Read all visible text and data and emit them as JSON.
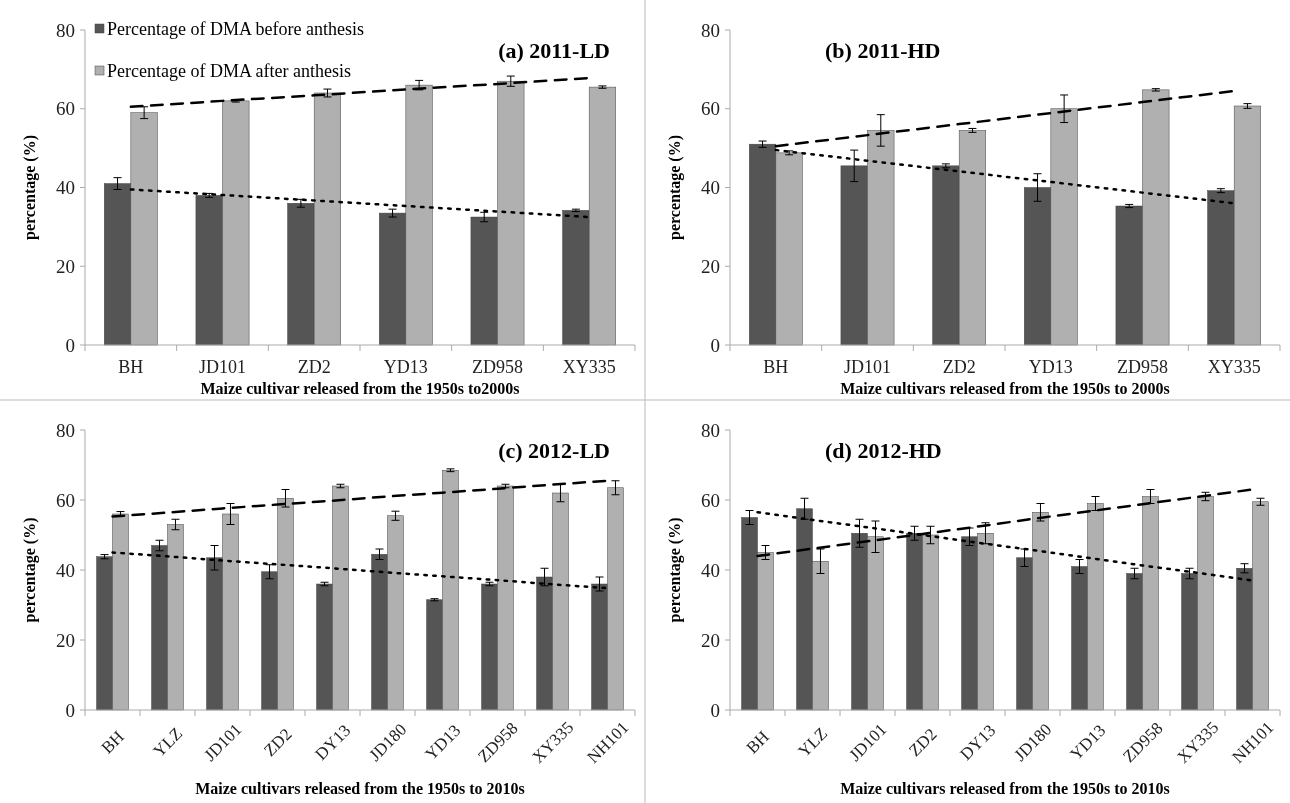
{
  "chart_data": [
    {
      "type": "bar",
      "title": "(a) 2011-LD",
      "xlabel": "Maize cultivar released from the 1950s to2000s",
      "ylabel": "percentage (%)",
      "categories": [
        "BH",
        "JD101",
        "ZD2",
        "YD13",
        "ZD958",
        "XY335"
      ],
      "ylim": [
        0,
        80
      ],
      "yticks": [
        0,
        20,
        40,
        60,
        80
      ],
      "legend": "top left",
      "series": [
        {
          "name": "Percentage of DMA before anthesis",
          "color": "#555555",
          "values": [
            41,
            38,
            36,
            33.5,
            32.5,
            34.2
          ],
          "errors": [
            1.5,
            0.5,
            1,
            1,
            1.2,
            0.3
          ]
        },
        {
          "name": "Percentage of DMA after anthesis",
          "color": "#b0b0b0",
          "values": [
            59,
            62,
            64,
            66,
            67,
            65.5
          ],
          "errors": [
            1.5,
            0.3,
            1,
            1.2,
            1.3,
            0.3
          ]
        },
        {
          "type": "line",
          "color": "#000000",
          "line_style": "dotted",
          "values": [
            39.5,
            38.1,
            36.7,
            35.3,
            33.9,
            32.5
          ]
        },
        {
          "type": "line",
          "color": "#000000",
          "line_style": "dashed",
          "values": [
            60.5,
            62.0,
            63.4,
            64.9,
            66.3,
            67.8
          ]
        }
      ]
    },
    {
      "type": "bar",
      "title": "(b) 2011-HD",
      "xlabel": "Maize cultivars released from the 1950s to 2000s",
      "ylabel": "percentage (%)",
      "categories": [
        "BH",
        "JD101",
        "ZD2",
        "YD13",
        "ZD958",
        "XY335"
      ],
      "ylim": [
        0,
        80
      ],
      "yticks": [
        0,
        20,
        40,
        60,
        80
      ],
      "series": [
        {
          "color": "#555555",
          "values": [
            51,
            45.5,
            45.5,
            40,
            35.3,
            39.2
          ],
          "errors": [
            0.8,
            4,
            0.5,
            3.5,
            0.4,
            0.5
          ]
        },
        {
          "color": "#b0b0b0",
          "values": [
            48.8,
            54.5,
            54.5,
            60,
            64.8,
            60.7
          ],
          "errors": [
            0.5,
            4,
            0.5,
            3.5,
            0.3,
            0.6
          ]
        },
        {
          "type": "line",
          "color": "#000000",
          "line_style": "dotted",
          "values": [
            49.5,
            46.8,
            44.1,
            41.4,
            38.7,
            36
          ]
        },
        {
          "type": "line",
          "color": "#000000",
          "line_style": "dashed",
          "values": [
            50.5,
            53.3,
            56.1,
            58.9,
            61.7,
            64.5
          ]
        }
      ]
    },
    {
      "type": "bar",
      "title": "(c) 2012-LD",
      "xlabel": "Maize cultivars released from the 1950s to 2010s",
      "ylabel": "percentage (%)",
      "categories": [
        "BH",
        "YLZ",
        "JD101",
        "ZD2",
        "DY13",
        "JD180",
        "YD13",
        "ZD958",
        "XY335",
        "NH101"
      ],
      "ylim": [
        0,
        80
      ],
      "yticks": [
        0,
        20,
        40,
        60,
        80
      ],
      "series": [
        {
          "color": "#555555",
          "values": [
            43.8,
            47,
            43.5,
            39.5,
            36,
            44.5,
            31.5,
            36,
            38,
            36
          ],
          "errors": [
            0.6,
            1.5,
            3.5,
            2,
            0.5,
            1.5,
            0.3,
            0.5,
            2.5,
            2
          ]
        },
        {
          "color": "#b0b0b0",
          "values": [
            56,
            53,
            56,
            60.5,
            64,
            55.5,
            68.5,
            64,
            62,
            63.5
          ],
          "errors": [
            0.7,
            1.5,
            3,
            2.5,
            0.5,
            1.3,
            0.4,
            0.5,
            2.5,
            2
          ]
        },
        {
          "type": "line",
          "color": "#000000",
          "line_style": "dotted",
          "values": [
            45,
            43.9,
            42.7,
            41.6,
            40.5,
            39.3,
            38.2,
            37.1,
            35.9,
            34.8
          ]
        },
        {
          "type": "line",
          "color": "#000000",
          "line_style": "dashed",
          "values": [
            55.3,
            56.4,
            57.6,
            58.7,
            59.8,
            61,
            62.1,
            63.2,
            64.4,
            65.5
          ]
        }
      ]
    },
    {
      "type": "bar",
      "title": "(d) 2012-HD",
      "xlabel": "Maize cultivars released from the 1950s to 2010s",
      "ylabel": "percentage (%)",
      "categories": [
        "BH",
        "YLZ",
        "JD101",
        "ZD2",
        "DY13",
        "JD180",
        "YD13",
        "ZD958",
        "XY335",
        "NH101"
      ],
      "ylim": [
        0,
        80
      ],
      "yticks": [
        0,
        20,
        40,
        60,
        80
      ],
      "series": [
        {
          "color": "#555555",
          "values": [
            55,
            57.5,
            50.5,
            50.5,
            49.5,
            43.5,
            41,
            39,
            39,
            40.5
          ],
          "errors": [
            2,
            3,
            4,
            2,
            2.5,
            2.5,
            2,
            1.5,
            1.5,
            1.3
          ]
        },
        {
          "color": "#b0b0b0",
          "values": [
            45,
            42.5,
            49.5,
            50,
            50.5,
            56.5,
            59,
            61,
            61,
            59.5
          ],
          "errors": [
            2,
            3.5,
            4.5,
            2.5,
            3,
            2.5,
            2,
            2,
            1.2,
            1
          ]
        },
        {
          "type": "line",
          "color": "#000000",
          "line_style": "dotted",
          "values": [
            56.5,
            54.3,
            52.2,
            50,
            47.8,
            45.7,
            43.5,
            41.3,
            39.2,
            37
          ]
        },
        {
          "type": "line",
          "color": "#000000",
          "line_style": "dashed",
          "values": [
            44,
            46.1,
            48.2,
            50.3,
            52.4,
            54.6,
            56.7,
            58.8,
            60.9,
            63
          ]
        }
      ]
    }
  ]
}
